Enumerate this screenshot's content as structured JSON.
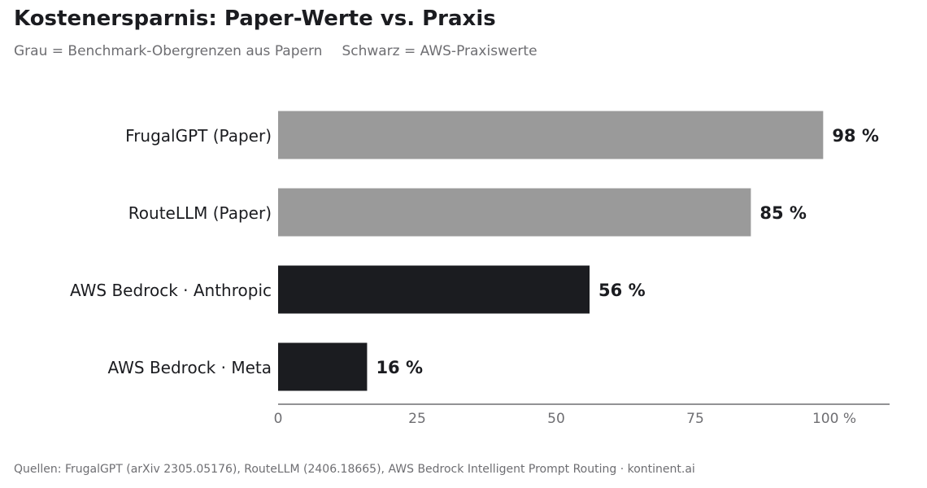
{
  "chart_data": {
    "type": "bar",
    "orientation": "horizontal",
    "title": "Kostenersparnis: Paper-Werte vs. Praxis",
    "subtitle": [
      "Grau = Benchmark-Obergrenzen aus Papern",
      "Schwarz = AWS-Praxiswerte"
    ],
    "categories": [
      "FrugalGPT (Paper)",
      "RouteLLM (Paper)",
      "AWS Bedrock · Anthropic",
      "AWS Bedrock · Meta"
    ],
    "values": [
      98,
      85,
      56,
      16
    ],
    "value_labels": [
      "98 %",
      "85 %",
      "56 %",
      "16 %"
    ],
    "bar_colors": [
      "#9a9a9a",
      "#9a9a9a",
      "#1b1c20",
      "#1b1c20"
    ],
    "xlim": [
      0,
      110
    ],
    "xticks": [
      0,
      25,
      50,
      75,
      100
    ],
    "xtick_labels": [
      "0",
      "25",
      "50",
      "75",
      "100 %"
    ],
    "xlabel": "",
    "ylabel": "",
    "grid": false,
    "legend": "none"
  },
  "footer": "Quellen: FrugalGPT (arXiv 2305.05176), RouteLLM (2406.18665), AWS Bedrock Intelligent Prompt Routing · kontinent.ai",
  "colors": {
    "paper": "#9a9a9a",
    "practice": "#1b1c20",
    "axis": "#6e6e72",
    "text": "#1b1c20",
    "muted": "#6e6e72"
  }
}
